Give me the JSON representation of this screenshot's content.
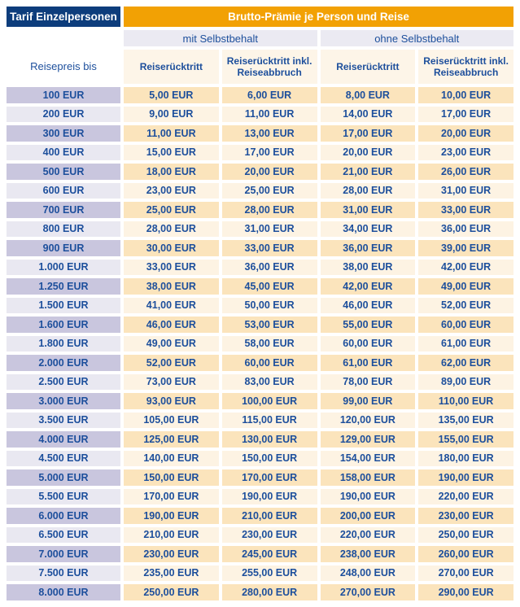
{
  "header": {
    "tariff_label": "Tarif Einzelpersonen",
    "premium_label": "Brutto-Prämie je Person und Reise"
  },
  "subheader": {
    "with_deductible": "mit Selbstbehalt",
    "without_deductible": "ohne Selbstbehalt"
  },
  "columns": {
    "trip_price": "Reisepreis bis",
    "cancellation_with": "Reiserücktritt",
    "cancellation_curtailment_with": "Reiserücktritt inkl. Reiseabbruch",
    "cancellation_without": "Reiserücktritt",
    "cancellation_curtailment_without": "Reiserücktritt inkl. Reiseabbruch"
  },
  "colors": {
    "header_navy": "#0D3D7C",
    "header_orange": "#F2A104",
    "text_blue": "#1D4F9C",
    "row_lavender_dark": "#C9C6DE",
    "row_lavender_light": "#E9E8F1",
    "row_cream_dark": "#FBE4BC",
    "row_cream_light": "#FDF3E3",
    "subheader_bar": "#EBEAF2",
    "column_header_cream": "#FDF5E8"
  },
  "rows": [
    [
      "100 EUR",
      "5,00 EUR",
      "6,00 EUR",
      "8,00 EUR",
      "10,00 EUR"
    ],
    [
      "200 EUR",
      "9,00 EUR",
      "11,00 EUR",
      "14,00 EUR",
      "17,00 EUR"
    ],
    [
      "300 EUR",
      "11,00 EUR",
      "13,00 EUR",
      "17,00 EUR",
      "20,00 EUR"
    ],
    [
      "400 EUR",
      "15,00 EUR",
      "17,00 EUR",
      "20,00 EUR",
      "23,00 EUR"
    ],
    [
      "500 EUR",
      "18,00 EUR",
      "20,00 EUR",
      "21,00 EUR",
      "26,00 EUR"
    ],
    [
      "600 EUR",
      "23,00 EUR",
      "25,00 EUR",
      "28,00 EUR",
      "31,00 EUR"
    ],
    [
      "700 EUR",
      "25,00 EUR",
      "28,00 EUR",
      "31,00 EUR",
      "33,00 EUR"
    ],
    [
      "800 EUR",
      "28,00 EUR",
      "31,00 EUR",
      "34,00 EUR",
      "36,00 EUR"
    ],
    [
      "900 EUR",
      "30,00 EUR",
      "33,00 EUR",
      "36,00 EUR",
      "39,00 EUR"
    ],
    [
      "1.000 EUR",
      "33,00 EUR",
      "36,00 EUR",
      "38,00 EUR",
      "42,00 EUR"
    ],
    [
      "1.250 EUR",
      "38,00 EUR",
      "45,00 EUR",
      "42,00 EUR",
      "49,00 EUR"
    ],
    [
      "1.500 EUR",
      "41,00 EUR",
      "50,00 EUR",
      "46,00 EUR",
      "52,00 EUR"
    ],
    [
      "1.600 EUR",
      "46,00 EUR",
      "53,00 EUR",
      "55,00 EUR",
      "60,00 EUR"
    ],
    [
      "1.800 EUR",
      "49,00 EUR",
      "58,00 EUR",
      "60,00 EUR",
      "61,00 EUR"
    ],
    [
      "2.000 EUR",
      "52,00 EUR",
      "60,00 EUR",
      "61,00 EUR",
      "62,00 EUR"
    ],
    [
      "2.500 EUR",
      "73,00 EUR",
      "83,00 EUR",
      "78,00 EUR",
      "89,00 EUR"
    ],
    [
      "3.000 EUR",
      "93,00 EUR",
      "100,00 EUR",
      "99,00 EUR",
      "110,00 EUR"
    ],
    [
      "3.500 EUR",
      "105,00 EUR",
      "115,00 EUR",
      "120,00 EUR",
      "135,00 EUR"
    ],
    [
      "4.000 EUR",
      "125,00 EUR",
      "130,00 EUR",
      "129,00 EUR",
      "155,00 EUR"
    ],
    [
      "4.500 EUR",
      "140,00 EUR",
      "150,00 EUR",
      "154,00 EUR",
      "180,00 EUR"
    ],
    [
      "5.000 EUR",
      "150,00 EUR",
      "170,00 EUR",
      "158,00 EUR",
      "190,00 EUR"
    ],
    [
      "5.500 EUR",
      "170,00 EUR",
      "190,00 EUR",
      "190,00 EUR",
      "220,00 EUR"
    ],
    [
      "6.000 EUR",
      "190,00 EUR",
      "210,00 EUR",
      "200,00 EUR",
      "230,00 EUR"
    ],
    [
      "6.500 EUR",
      "210,00 EUR",
      "230,00 EUR",
      "220,00 EUR",
      "250,00 EUR"
    ],
    [
      "7.000 EUR",
      "230,00 EUR",
      "245,00 EUR",
      "238,00 EUR",
      "260,00 EUR"
    ],
    [
      "7.500 EUR",
      "235,00 EUR",
      "255,00 EUR",
      "248,00 EUR",
      "270,00 EUR"
    ],
    [
      "8.000 EUR",
      "250,00 EUR",
      "280,00 EUR",
      "270,00 EUR",
      "290,00 EUR"
    ]
  ]
}
